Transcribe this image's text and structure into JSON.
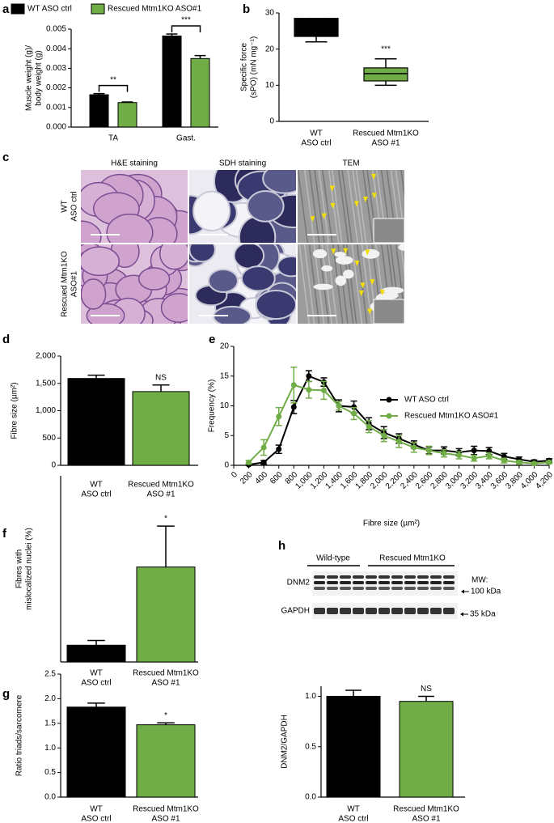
{
  "panel_labels": [
    "a",
    "b",
    "c",
    "d",
    "e",
    "f",
    "g",
    "h"
  ],
  "micrographs": {
    "columns": [
      "H&E staining",
      "SDH staining",
      "TEM"
    ],
    "rows": [
      [
        "WT",
        "ASO ctrl"
      ],
      [
        "Rescued Mtm1KO",
        "ASO#1"
      ]
    ]
  },
  "blot": {
    "groups": [
      "Wild-type",
      "Rescued Mtm1KO"
    ],
    "proteins": [
      "DNM2",
      "GAPDH"
    ],
    "mw_title": "MW:",
    "markers": [
      "100 kDa",
      "35 kDa"
    ]
  },
  "chart_data": [
    {
      "type": "bar",
      "ylabel": [
        "Muscle weight (g)/",
        "body weight (g)"
      ],
      "categories": [
        "TA",
        "Gast."
      ],
      "series": [
        {
          "name": "WT ASO ctrl",
          "color": "#000000",
          "values": [
            0.00165,
            0.00465
          ],
          "errors": [
            6e-05,
            0.0001
          ]
        },
        {
          "name": "Rescued Mtm1KO ASO#1",
          "color": "#71ad47",
          "values": [
            0.00125,
            0.0035
          ],
          "errors": [
            3e-05,
            0.00015
          ]
        }
      ],
      "ylim": [
        0,
        0.005
      ],
      "yticks": [
        {
          "value": 0,
          "label": "0.000"
        },
        {
          "value": 0.001,
          "label": "0.001"
        },
        {
          "value": 0.002,
          "label": "0.002"
        },
        {
          "value": 0.003,
          "label": "0.003"
        },
        {
          "value": 0.004,
          "label": "0.004"
        },
        {
          "value": 0.005,
          "label": "0.005"
        }
      ],
      "annotations": [
        "**",
        "***"
      ]
    },
    {
      "type": "box",
      "ylabel": [
        "Specific force",
        "(sPO) (mN mg⁻¹)"
      ],
      "categories": [
        [
          "WT",
          "ASO ctrl"
        ],
        [
          "Rescued Mtm1KO",
          "ASO #1"
        ]
      ],
      "boxes": [
        {
          "min": 22,
          "q1": 23.5,
          "median": 28.3,
          "q3": 28.5,
          "max": 28.5
        },
        {
          "min": 10,
          "q1": 11.2,
          "median": 13.2,
          "q3": 14.8,
          "max": 17.3
        }
      ],
      "colors": [
        "#000000",
        "#71ad47"
      ],
      "ylim": [
        0,
        30
      ],
      "yticks": [
        0,
        10,
        20,
        30
      ],
      "annotations": [
        "***"
      ]
    },
    {
      "type": "bar",
      "ylabel": [
        "Fibre size (µm²)"
      ],
      "categories": [
        [
          "WT",
          "ASO ctrl"
        ],
        [
          "Rescued Mtm1KO",
          "ASO #1"
        ]
      ],
      "values": [
        1590,
        1350
      ],
      "errors": [
        60,
        120
      ],
      "colors": [
        "#000000",
        "#71ad47"
      ],
      "ylim": [
        0,
        2000
      ],
      "yticks": [
        0,
        500,
        {
          "value": 1000,
          "label": "1,000"
        },
        {
          "value": 1500,
          "label": "1,500"
        },
        {
          "value": 2000,
          "label": "2,000"
        }
      ],
      "annotations": [
        "NS"
      ]
    },
    {
      "type": "line",
      "xlabel": "Fibre size (µm²)",
      "ylabel": [
        "Frequency (%)"
      ],
      "x": [
        200,
        400,
        600,
        800,
        1000,
        1200,
        1400,
        1600,
        1800,
        2000,
        2200,
        2400,
        2600,
        2800,
        3000,
        3200,
        3400,
        3600,
        3800,
        4000,
        4200
      ],
      "series": [
        {
          "name": "WT ASO ctrl",
          "color": "#000000",
          "values": [
            0.1,
            0.5,
            2.7,
            9.8,
            15,
            14,
            10,
            9.8,
            7,
            5.5,
            4.5,
            3.5,
            2.5,
            2.5,
            2.2,
            2.5,
            2.4,
            1.5,
            1,
            0.6,
            0.8
          ],
          "errors": [
            0.1,
            0.3,
            0.7,
            1.1,
            0.9,
            0.7,
            1,
            1,
            1,
            1,
            0.8,
            0.6,
            0.6,
            0.6,
            0.6,
            0.7,
            0.6,
            0.5,
            0.4,
            0.3,
            0.3
          ]
        },
        {
          "name": "Rescued Mtm1KO ASO#1",
          "color": "#71ad47",
          "values": [
            0.5,
            3,
            8.2,
            13.5,
            12.7,
            12.6,
            10,
            8.7,
            6.5,
            5,
            4,
            3,
            2.5,
            2,
            1.7,
            1.2,
            1.6,
            0.8,
            0.5,
            0.3,
            0.5
          ],
          "errors": [
            0.3,
            1.3,
            1.5,
            3,
            1.4,
            1.5,
            0.7,
            1,
            1,
            1,
            1,
            0.8,
            0.7,
            0.6,
            0.6,
            0.5,
            0.5,
            0.4,
            0.3,
            0.2,
            0.2
          ]
        }
      ],
      "xlim": [
        0,
        4200
      ],
      "xticks": [
        0,
        200,
        400,
        600,
        800,
        {
          "value": 1000,
          "label": "1,000"
        },
        {
          "value": 1200,
          "label": "1,200"
        },
        {
          "value": 1400,
          "label": "1,400"
        },
        {
          "value": 1600,
          "label": "1,600"
        },
        {
          "value": 1800,
          "label": "1,800"
        },
        {
          "value": 2000,
          "label": "2,000"
        },
        {
          "value": 2200,
          "label": "2,200"
        },
        {
          "value": 2400,
          "label": "2,400"
        },
        {
          "value": 2600,
          "label": "2,600"
        },
        {
          "value": 2800,
          "label": "2,800"
        },
        {
          "value": 3000,
          "label": "3,000"
        },
        {
          "value": 3200,
          "label": "3,200"
        },
        {
          "value": 3400,
          "label": "3,400"
        },
        {
          "value": 3600,
          "label": "3,600"
        },
        {
          "value": 3800,
          "label": "3,800"
        },
        {
          "value": 4000,
          "label": "4,000"
        },
        {
          "value": 4200,
          "label": "4,200"
        }
      ],
      "ylim": [
        0,
        20
      ],
      "yticks": [
        0,
        5,
        10,
        15,
        20
      ]
    },
    {
      "type": "bar",
      "ylabel": [
        "Fibres with",
        "mislocalized nuclei (%)"
      ],
      "categories": [
        [
          "WT",
          "ASO ctrl"
        ],
        [
          "Rescued Mtm1KO",
          "ASO #1"
        ]
      ],
      "values": [
        0.9,
        5.1
      ],
      "errors": [
        0.25,
        2.2
      ],
      "colors": [
        "#000000",
        "#71ad47"
      ],
      "ylim": [
        0,
        10
      ],
      "yticks": [],
      "annotations": [
        "*"
      ]
    },
    {
      "type": "bar",
      "ylabel": [
        "Ratio triads/sarcomere"
      ],
      "categories": [
        [
          "WT",
          "ASO ctrl"
        ],
        [
          "Rescued Mtm1KO",
          "ASO #1"
        ]
      ],
      "values": [
        1.83,
        1.47
      ],
      "errors": [
        0.08,
        0.04
      ],
      "colors": [
        "#000000",
        "#71ad47"
      ],
      "ylim": [
        0,
        2.5
      ],
      "yticks": [
        {
          "value": 0,
          "label": "0.0"
        },
        {
          "value": 0.5,
          "label": "0.5"
        },
        {
          "value": 1,
          "label": "1.0"
        },
        {
          "value": 1.5,
          "label": "1.5"
        },
        {
          "value": 2,
          "label": "2.0"
        },
        {
          "value": 2.5,
          "label": "2.5"
        }
      ],
      "annotations": [
        "*"
      ]
    },
    {
      "type": "bar",
      "ylabel": [
        "DNM2/GAPDH"
      ],
      "categories": [
        [
          "WT",
          "ASO ctrl"
        ],
        [
          "Rescued Mtm1KO",
          "ASO #1"
        ]
      ],
      "values": [
        1.0,
        0.95
      ],
      "errors": [
        0.06,
        0.05
      ],
      "colors": [
        "#000000",
        "#71ad47"
      ],
      "ylim": [
        0,
        1.1
      ],
      "yticks": [
        {
          "value": 0,
          "label": "0.0"
        },
        {
          "value": 0.5,
          "label": "0.5"
        },
        {
          "value": 1,
          "label": "1.0"
        }
      ],
      "annotations": [
        "NS"
      ]
    }
  ]
}
